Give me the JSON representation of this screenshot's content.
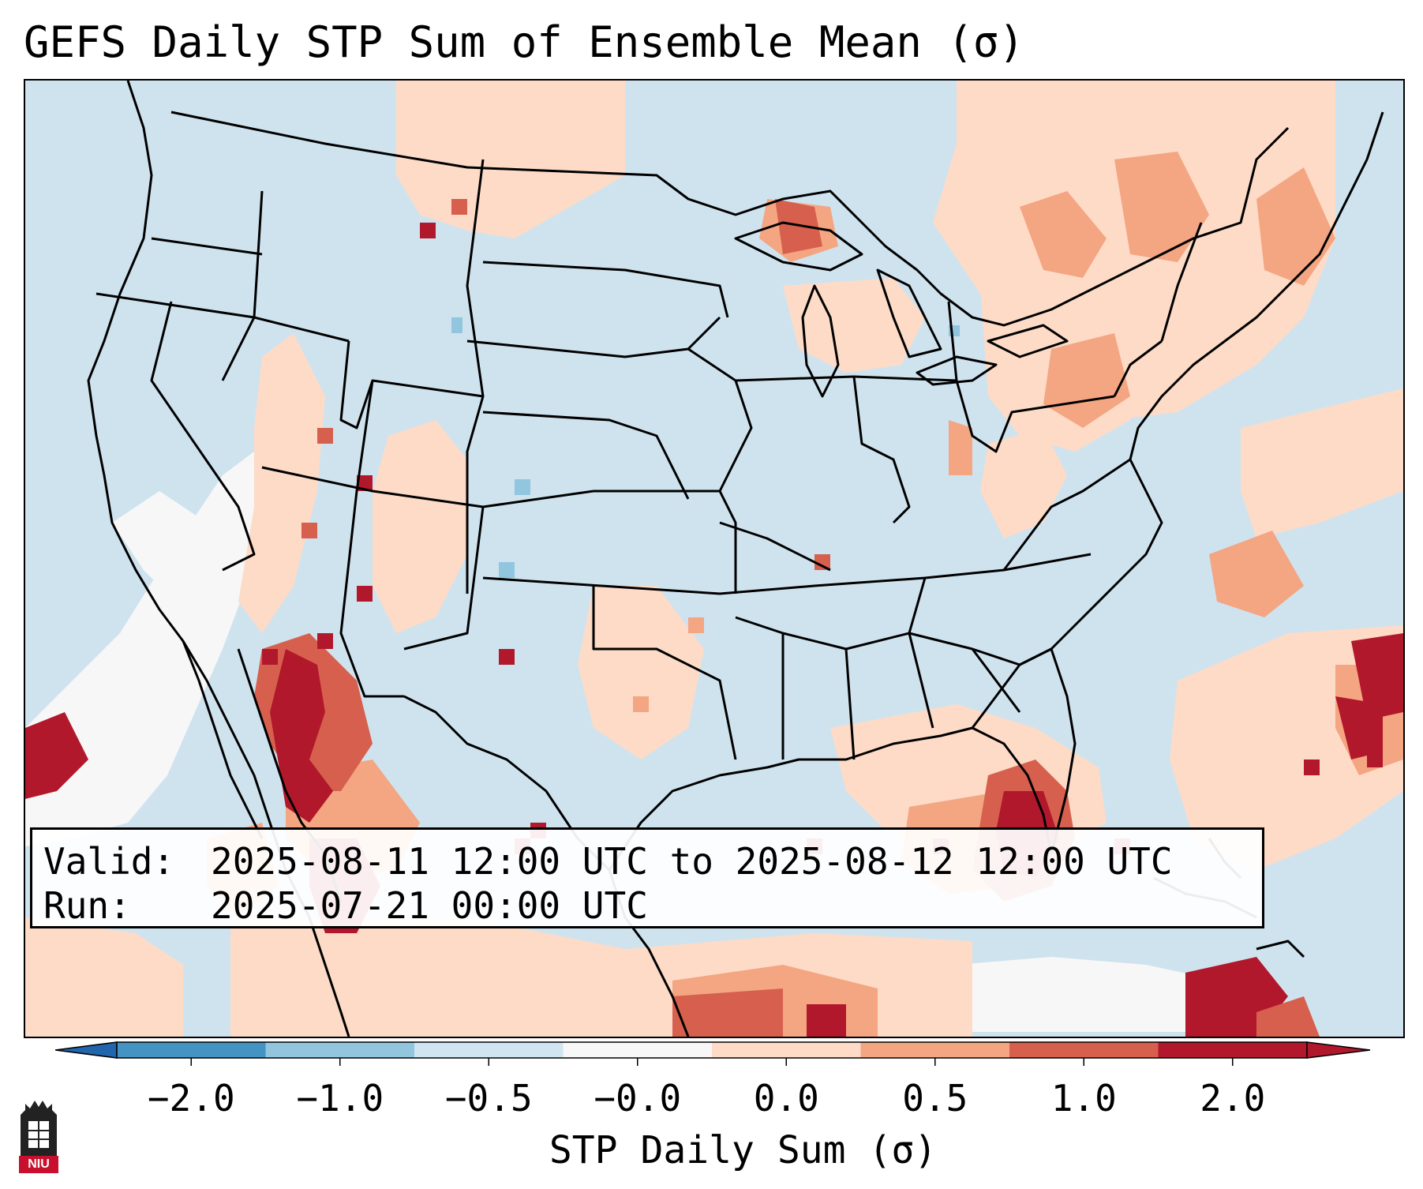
{
  "title": "GEFS Daily STP Sum of Ensemble Mean (σ)",
  "info": {
    "valid_label": "Valid:",
    "valid_value": "2025-08-11 12:00 UTC to 2025-08-12 12:00 UTC",
    "run_label": "Run:",
    "run_value": "2025-07-21 00:00 UTC"
  },
  "colorbar": {
    "label": "STP Daily Sum (σ)",
    "ticks": [
      "−2.0",
      "−1.0",
      "−0.5",
      "−0.0",
      "0.0",
      "0.5",
      "1.0",
      "2.0"
    ],
    "colors": [
      "#4393c3",
      "#92c5de",
      "#d1e5f0",
      "#f7f7f7",
      "#fddbc7",
      "#f4a582",
      "#d6604d",
      "#b2182b"
    ],
    "extend_low_color": "#2166ac",
    "extend_high_color": "#b2182b"
  },
  "colors": {
    "background": "#cfe3ef",
    "neutral": "#f7f7f7",
    "light_red": "#fddbc7",
    "mid_red": "#f4a582",
    "red": "#d6604d",
    "dark_red": "#b2182b",
    "light_blue": "#92c5de"
  },
  "logo": {
    "text": "NIU",
    "icon": "university-tower-icon"
  }
}
